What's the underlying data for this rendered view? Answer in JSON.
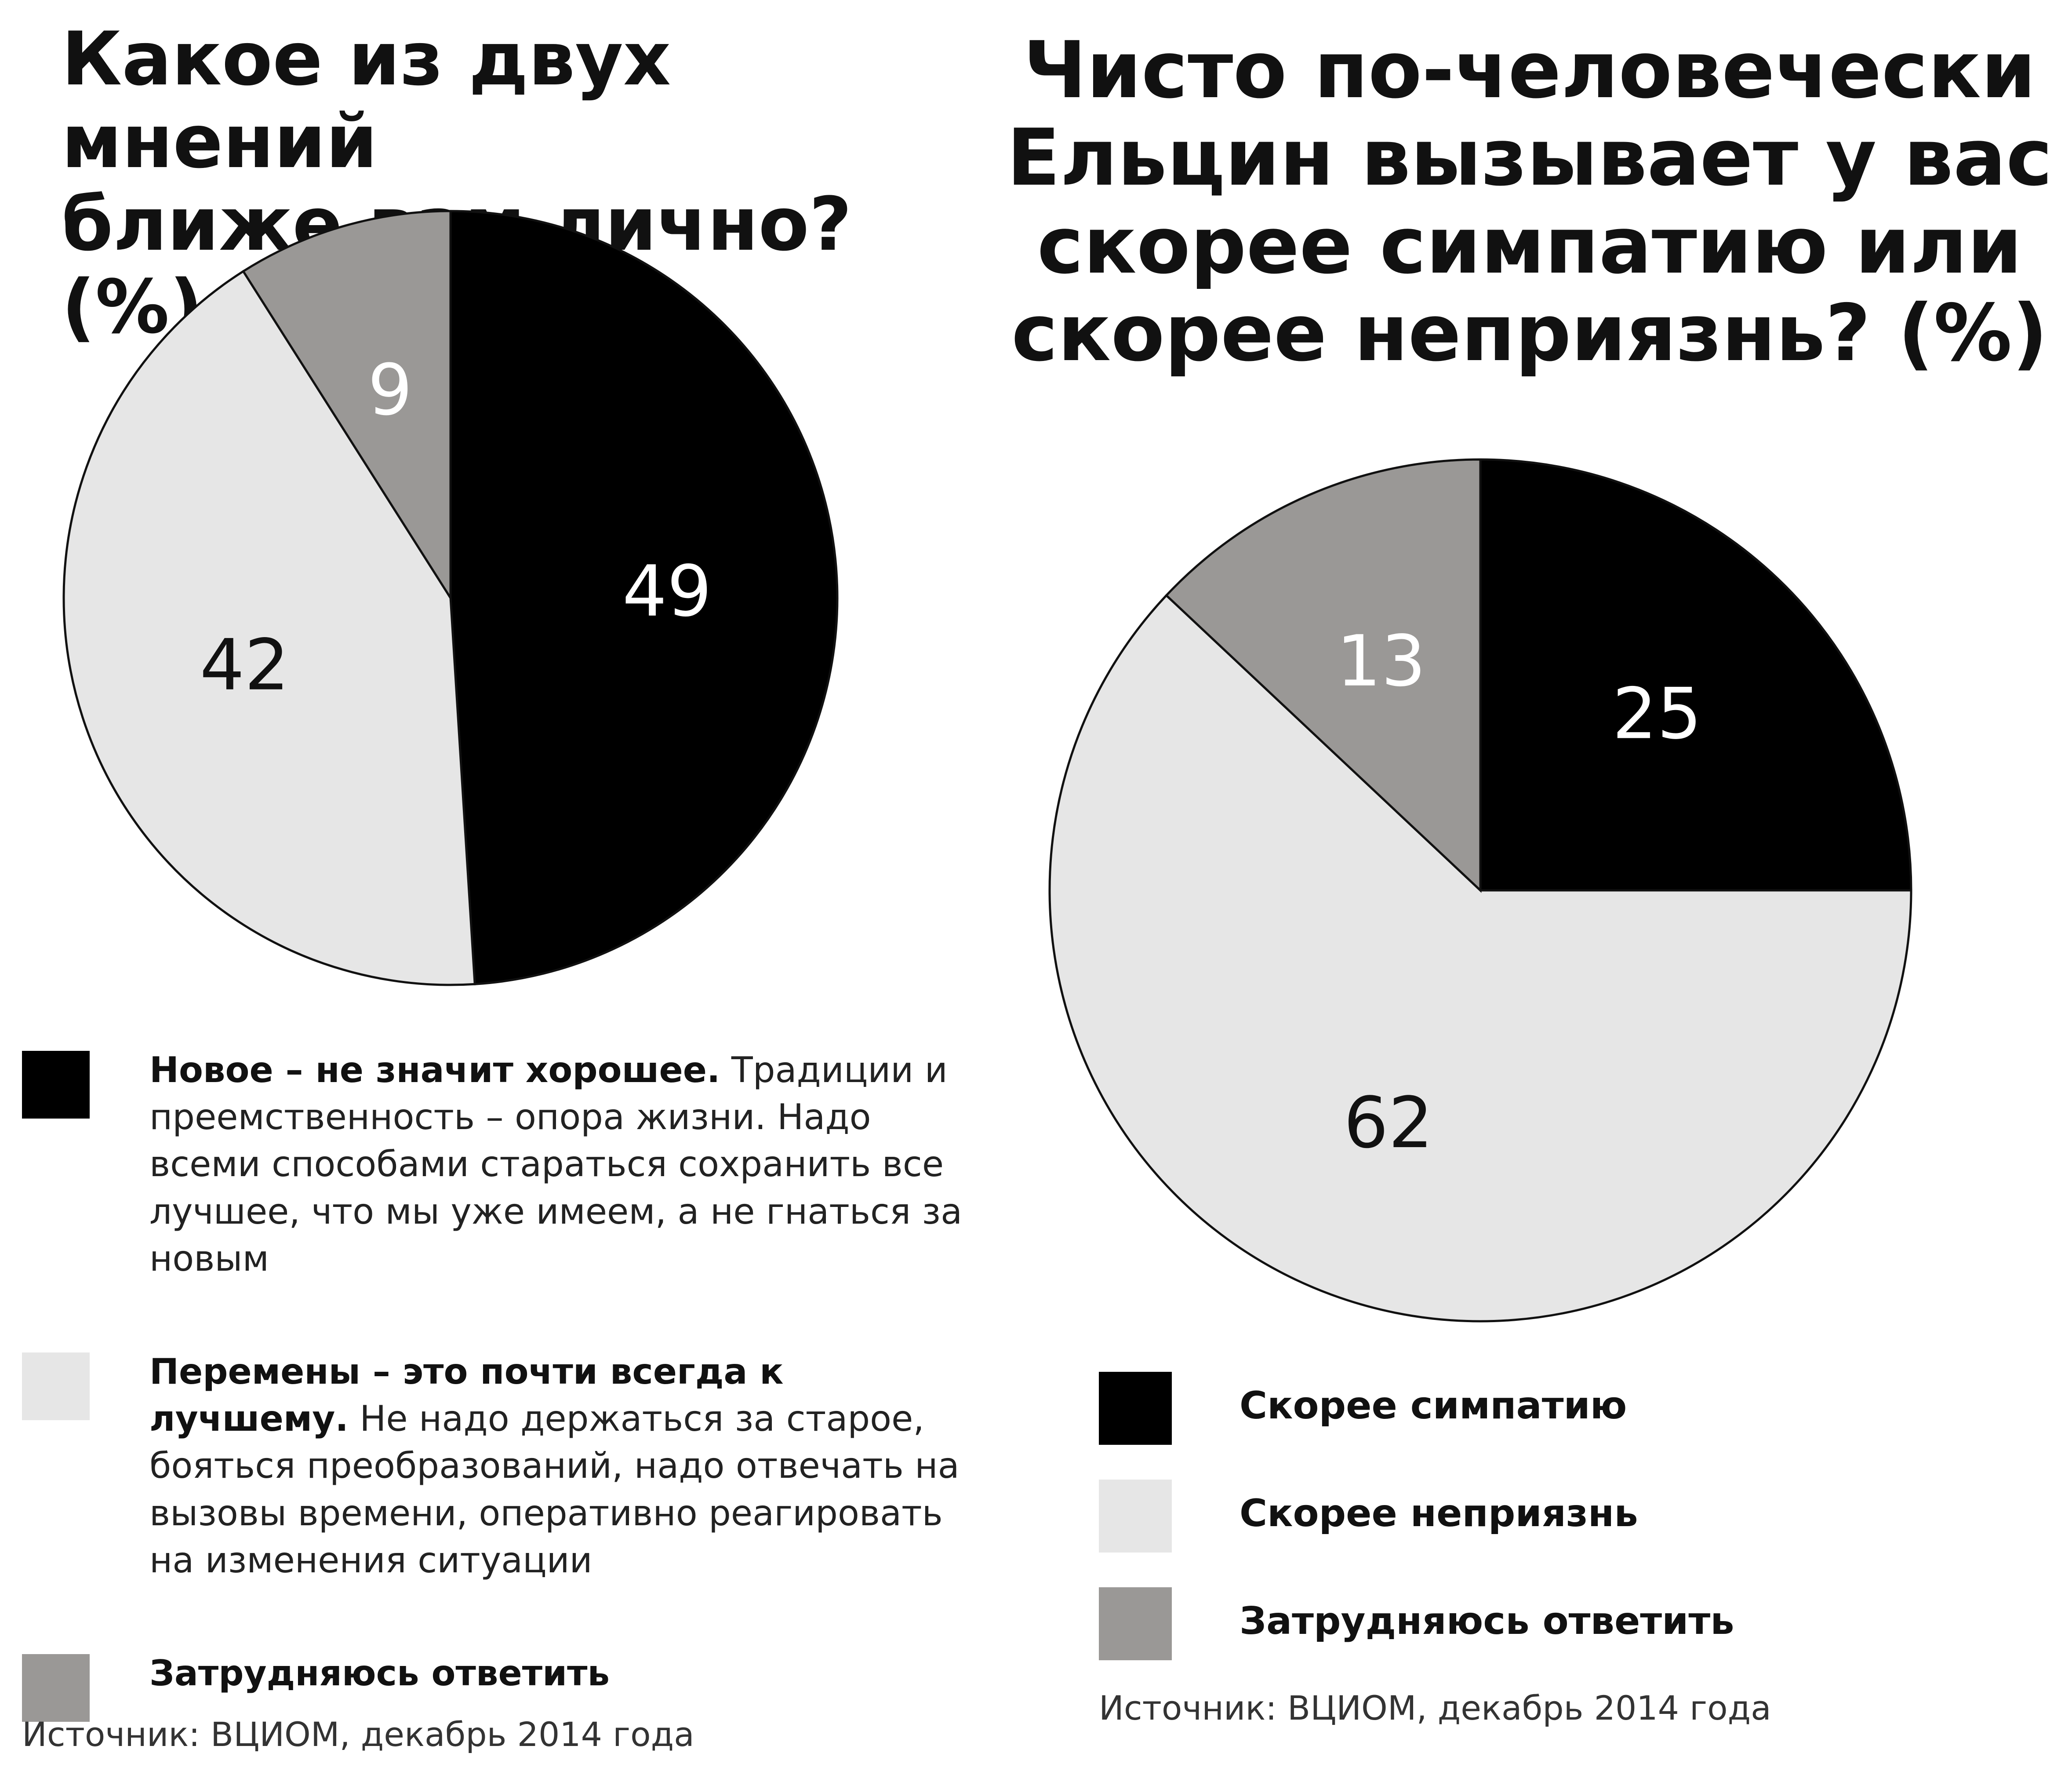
{
  "colors": {
    "black": "#000000",
    "light": "#e6e6e6",
    "gray": "#9a9896",
    "label_on_dark": "#ffffff",
    "label_on_light": "#111111",
    "label_on_gray": "#ffffff",
    "outline": "#111111"
  },
  "chart_data": [
    {
      "type": "pie",
      "title_lines": [
        "Какое из двух мнений",
        "ближе вам лично? (%)"
      ],
      "slices": [
        {
          "legend_bold": "Новое – не значит хорошее.",
          "legend_text": "Традиции и преемственность – опора жизни. Надо всеми способами стараться сохранить все лучшее, что мы уже имеем, а не гнаться за новым",
          "value": 49,
          "label": "49",
          "color": "black",
          "label_color": "label_on_dark"
        },
        {
          "legend_bold": "Перемены – это почти всегда к лучшему.",
          "legend_text": "Не надо держаться за старое, бояться преобразований, надо отвечать на вызовы времени, оперативно реагировать на изменения ситуации",
          "value": 42,
          "label": "42",
          "color": "light",
          "label_color": "label_on_light"
        },
        {
          "legend_bold": "Затрудняюсь ответить",
          "legend_text": "",
          "value": 9,
          "label": "9",
          "color": "gray",
          "label_color": "label_on_gray"
        }
      ],
      "source": "Источник: ВЦИОМ, декабрь 2014 года"
    },
    {
      "type": "pie",
      "title_lines": [
        "Чисто по-человечески",
        "Ельцин вызывает у вас",
        "скорее симпатию или",
        "скорее неприязнь? (%)"
      ],
      "slices": [
        {
          "legend_bold": "Скорее симпатию",
          "legend_text": "",
          "value": 25,
          "label": "25",
          "color": "black",
          "label_color": "label_on_dark"
        },
        {
          "legend_bold": "Скорее неприязнь",
          "legend_text": "",
          "value": 62,
          "label": "62",
          "color": "light",
          "label_color": "label_on_light"
        },
        {
          "legend_bold": "Затрудняюсь ответить",
          "legend_text": "",
          "value": 13,
          "label": "13",
          "color": "gray",
          "label_color": "label_on_gray"
        }
      ],
      "source": "Источник: ВЦИОМ, декабрь 2014 года"
    }
  ]
}
